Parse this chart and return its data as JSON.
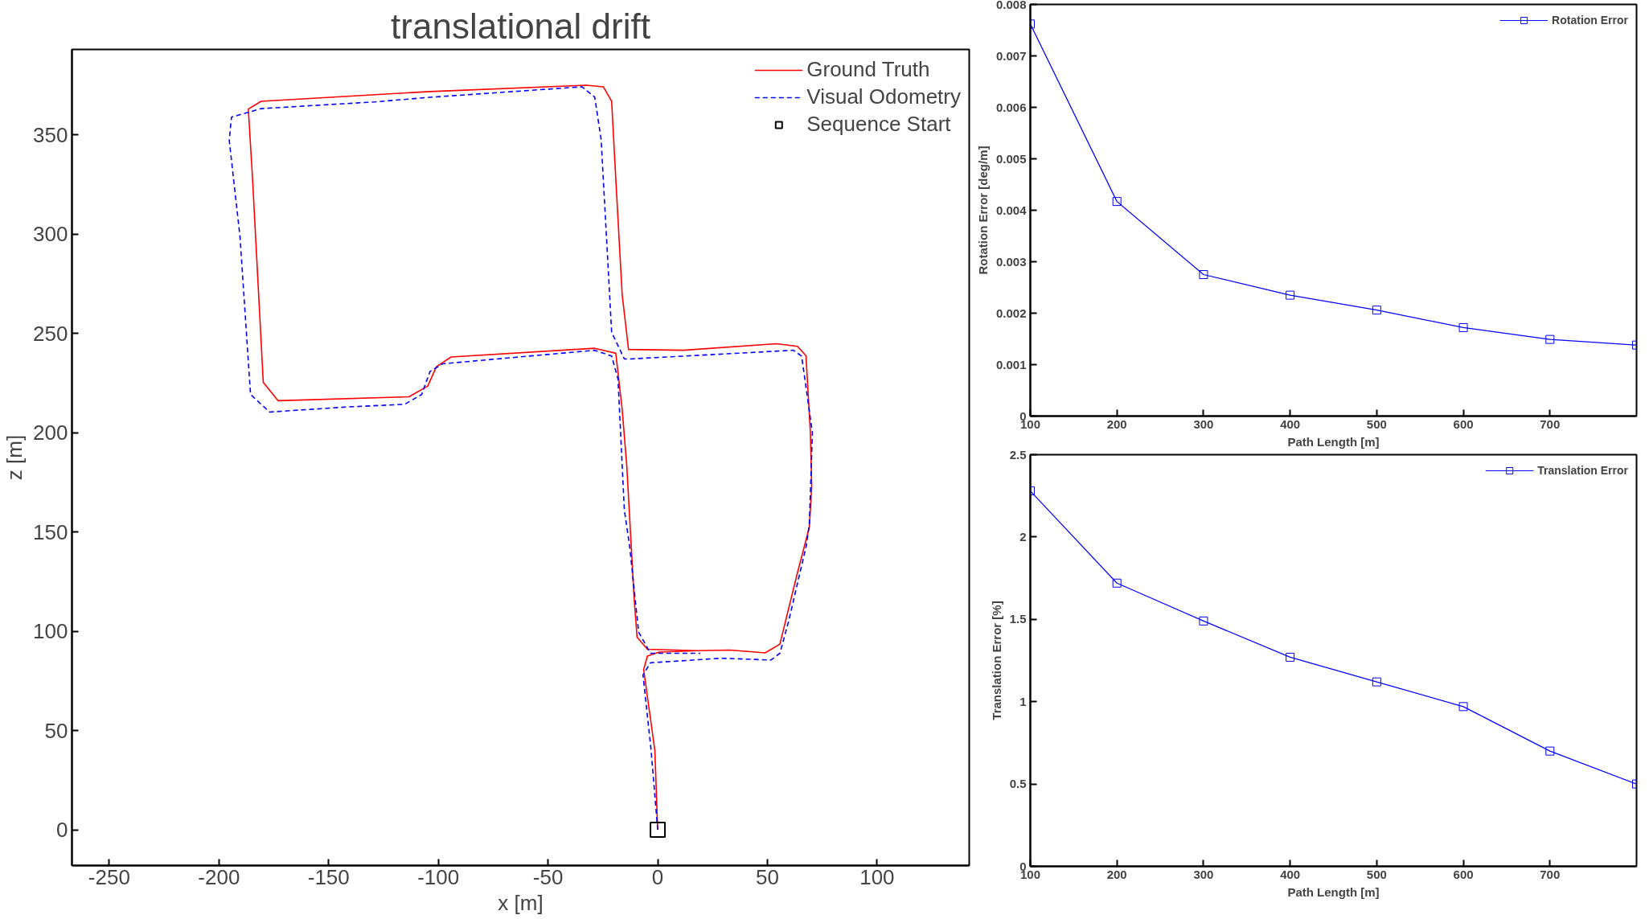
{
  "chart_data": [
    {
      "type": "line",
      "title": "translational drift",
      "xlabel": "x [m]",
      "ylabel": "z [m]",
      "xlim": [
        -267,
        142
      ],
      "ylim": [
        -18,
        393
      ],
      "xticks": [
        -250,
        -200,
        -150,
        -100,
        -50,
        0,
        50,
        100
      ],
      "yticks": [
        0,
        50,
        100,
        150,
        200,
        250,
        300,
        350
      ],
      "grid": false,
      "legend": "top right",
      "series": [
        {
          "name": "Ground Truth",
          "color": "#ff0000",
          "line_style": "solid",
          "x": [
            0,
            -1.3,
            -6.4,
            -4.7,
            0.7,
            18.1,
            32.9,
            49,
            55.7,
            63.7,
            69.1,
            70.2,
            69.6,
            67.6,
            63.7,
            54.1,
            11.7,
            -13.3,
            -16.2,
            -19.1,
            -21,
            -24.8,
            -32.6,
            -103.8,
            -180.8,
            -186.6,
            -184.7,
            -179.8,
            -173.1,
            -113.4,
            -104.8,
            -100.9,
            -94.2,
            -28.7,
            -19.1,
            -16.2,
            -14.1,
            -10.7,
            -9.4,
            -4.7,
            18.1
          ],
          "values": [
            0,
            40,
            80.7,
            87.5,
            89.5,
            90.2,
            90.5,
            89.1,
            93.5,
            129.4,
            152.3,
            172.6,
            200,
            238.7,
            243.5,
            244.8,
            241.5,
            241.9,
            269.6,
            327.8,
            366.9,
            374.2,
            375,
            371.8,
            366.9,
            363,
            328.2,
            225.4,
            216.1,
            218.1,
            223.5,
            233.2,
            238.1,
            242.5,
            240,
            211.8,
            183.4,
            115.8,
            97,
            90.9,
            90.2
          ]
        },
        {
          "name": "Visual Odometry",
          "color": "#0000ff",
          "line_style": "dashed",
          "x": [
            0,
            -3,
            -6.7,
            -3.3,
            28.9,
            51.6,
            55.7,
            59.7,
            67.7,
            69.1,
            69.7,
            70.5,
            66.6,
            65.6,
            61.8,
            -13,
            -15.2,
            -21,
            -22.9,
            -25.8,
            -28.7,
            -34.5,
            -103.8,
            -128.8,
            -180.8,
            -194.3,
            -195.3,
            -190.4,
            -185.6,
            -176.9,
            -142.3,
            -115.3,
            -107.6,
            -103.8,
            -98,
            -28.7,
            -21,
            -18.1,
            -15.2,
            -12.8,
            -8.7,
            -3.3,
            19.4
          ],
          "values": [
            0,
            40,
            78,
            84.1,
            86.4,
            85.5,
            88.9,
            105.1,
            142.9,
            153.7,
            172.6,
            200,
            230.8,
            238.6,
            241.5,
            237.1,
            237.1,
            250.6,
            289.5,
            347.7,
            369,
            374.2,
            368.9,
            366.6,
            363.2,
            358.9,
            347.2,
            298.7,
            219.2,
            210.4,
            212.9,
            214.3,
            219.2,
            230.8,
            234.7,
            241.5,
            238.6,
            227,
            161,
            142.9,
            99.6,
            88.9,
            88.9
          ]
        },
        {
          "name": "Sequence Start",
          "type": "scatter",
          "marker": "square",
          "color": "#000000",
          "x": [
            0
          ],
          "values": [
            0
          ]
        }
      ]
    },
    {
      "type": "line",
      "xlabel": "Path Length [m]",
      "ylabel": "Rotation Error [deg/m]",
      "xlim": [
        100,
        800
      ],
      "ylim": [
        0,
        0.008
      ],
      "xticks": [
        100,
        200,
        300,
        400,
        500,
        600,
        700
      ],
      "yticks": [
        0,
        0.001,
        0.002,
        0.003,
        0.004,
        0.005,
        0.006,
        0.007,
        0.008
      ],
      "grid": false,
      "legend": "top right",
      "marker": "square",
      "x": [
        100,
        200,
        300,
        400,
        500,
        600,
        700,
        800
      ],
      "series": [
        {
          "name": "Rotation Error",
          "color": "#0000ff",
          "values": [
            0.00762,
            0.00417,
            0.00275,
            0.00235,
            0.00206,
            0.00172,
            0.00149,
            0.00138
          ]
        }
      ]
    },
    {
      "type": "line",
      "xlabel": "Path Length [m]",
      "ylabel": "Translation Error [%]",
      "xlim": [
        100,
        800
      ],
      "ylim": [
        0,
        2.5
      ],
      "xticks": [
        100,
        200,
        300,
        400,
        500,
        600,
        700
      ],
      "yticks": [
        0,
        0.5,
        1,
        1.5,
        2,
        2.5
      ],
      "grid": false,
      "legend": "top right",
      "marker": "square",
      "x": [
        100,
        200,
        300,
        400,
        500,
        600,
        700,
        800
      ],
      "series": [
        {
          "name": "Translation Error",
          "color": "#0000ff",
          "values": [
            2.28,
            1.72,
            1.49,
            1.27,
            1.12,
            0.97,
            0.7,
            0.5
          ]
        }
      ]
    }
  ]
}
